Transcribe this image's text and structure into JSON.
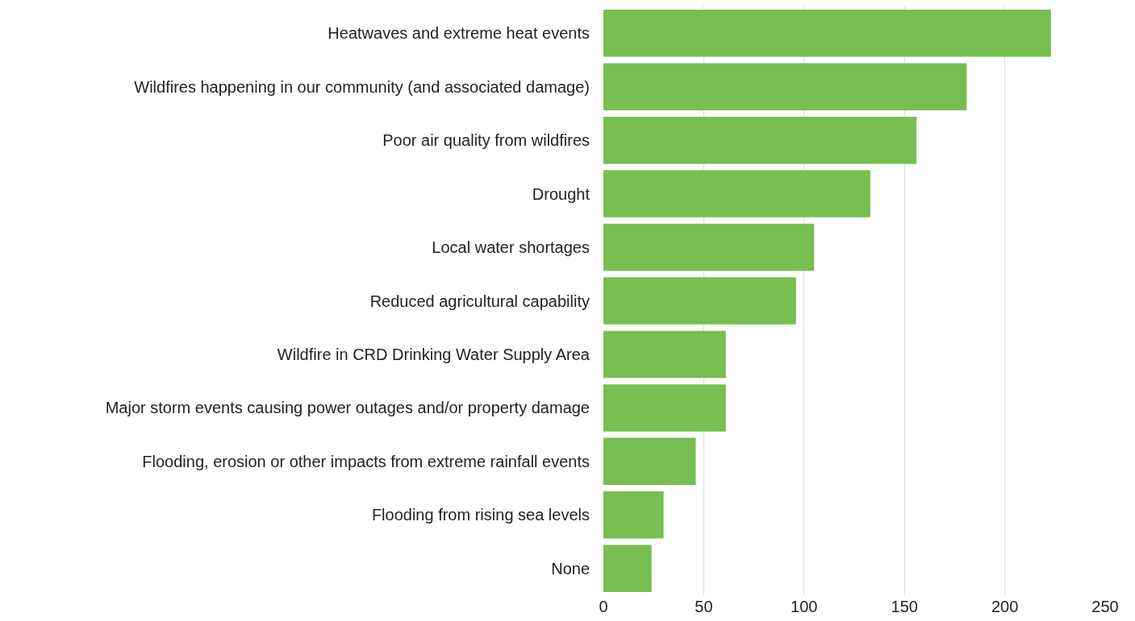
{
  "chart_data": {
    "type": "bar",
    "orientation": "horizontal",
    "categories": [
      "Heatwaves and extreme heat events",
      "Wildfires happening in our community (and associated damage)",
      "Poor air quality from wildfires",
      "Drought",
      "Local water shortages",
      "Reduced agricultural capability",
      "Wildfire in CRD Drinking Water Supply Area",
      "Major storm events causing power outages and/or property damage",
      "Flooding, erosion or other impacts from extreme rainfall events",
      "Flooding from rising sea levels",
      "None"
    ],
    "values": [
      223,
      181,
      156,
      133,
      105,
      96,
      61,
      61,
      46,
      30,
      24
    ],
    "color": "#77bf50",
    "xlim": [
      0,
      250
    ],
    "xticks": [
      0,
      50,
      100,
      150,
      200,
      250
    ],
    "grid": "x"
  }
}
